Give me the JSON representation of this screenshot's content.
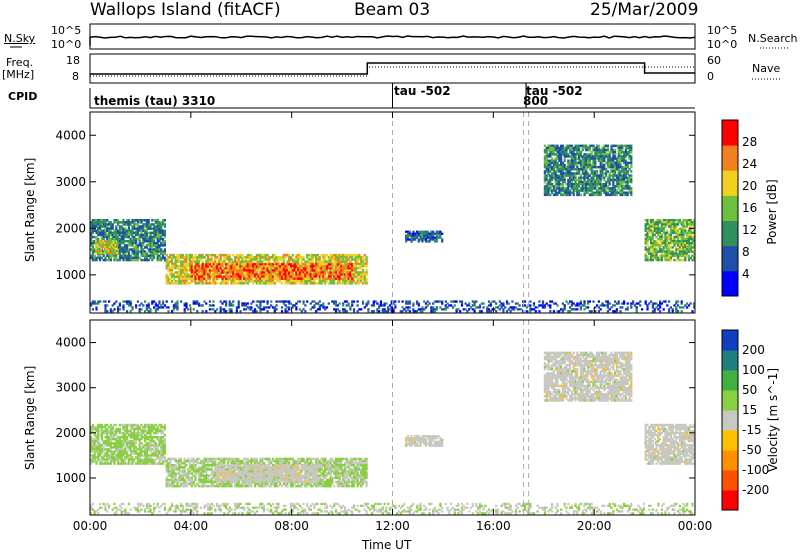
{
  "header": {
    "station": "Wallops Island (fitACF)",
    "beam": "Beam 03",
    "date": "25/Mar/2009"
  },
  "status_panels": {
    "nsky_label": "N.Sky",
    "nsearch_label": "N.Search",
    "noise_ticks_left": [
      "10^5",
      "10^0"
    ],
    "noise_ticks_right": [
      "10^5",
      "10^0"
    ],
    "freq_label": "Freq.",
    "freq_unit": "[MHz]",
    "freq_ticks": [
      "18",
      "8"
    ],
    "nave_label": "Nave",
    "nave_ticks": [
      "60",
      "0"
    ],
    "cpid_label": "CPID",
    "modes": [
      {
        "name": "themis (tau) 3310",
        "start_hour": 0
      },
      {
        "name": "tau -502",
        "start_hour": 12
      },
      {
        "name": "tau -502",
        "start_hour": 17.3
      },
      {
        "name": "800",
        "start_hour": 17.3
      }
    ]
  },
  "chart_data": [
    {
      "type": "heatmap",
      "name": "power",
      "xlabel": "Time UT",
      "ylabel": "Slant Range [km]",
      "x_ticks": [
        "00:00",
        "04:00",
        "08:00",
        "12:00",
        "16:00",
        "20:00",
        "00:00"
      ],
      "xlim_hours": [
        0,
        24
      ],
      "y_ticks": [
        1000,
        2000,
        3000,
        4000
      ],
      "ylim_km": [
        180,
        4500
      ],
      "colorbar_label": "Power [dB]",
      "colorbar_ticks": [
        "28",
        "24",
        "20",
        "16",
        "12",
        "8",
        "4"
      ],
      "colorbar_range": [
        0,
        30
      ],
      "colors": [
        "#0000ff",
        "#1f4fa8",
        "#2f8f5f",
        "#6fbf3f",
        "#f0d020",
        "#f08020",
        "#ff0000"
      ],
      "vertical_markers_hours": [
        12,
        17.2,
        17.4
      ],
      "echo_regions": [
        {
          "hours": [
            0,
            3
          ],
          "range_km": [
            1300,
            2200
          ],
          "level": 10
        },
        {
          "hours": [
            0.2,
            1.1
          ],
          "range_km": [
            1450,
            1750
          ],
          "level": 18
        },
        {
          "hours": [
            3,
            11
          ],
          "range_km": [
            800,
            1450
          ],
          "level": 18
        },
        {
          "hours": [
            4,
            10.5
          ],
          "range_km": [
            900,
            1250
          ],
          "level": 24
        },
        {
          "hours": [
            12.5,
            14
          ],
          "range_km": [
            1700,
            1950
          ],
          "level": 8
        },
        {
          "hours": [
            18,
            21.5
          ],
          "range_km": [
            2700,
            3800
          ],
          "level": 10
        },
        {
          "hours": [
            22,
            24
          ],
          "range_km": [
            1300,
            2200
          ],
          "level": 14
        },
        {
          "hours": [
            0,
            24
          ],
          "range_km": [
            200,
            450
          ],
          "level": 6
        }
      ]
    },
    {
      "type": "heatmap",
      "name": "velocity",
      "xlabel": "Time UT",
      "ylabel": "Slant Range [km]",
      "x_ticks": [
        "00:00",
        "04:00",
        "08:00",
        "12:00",
        "16:00",
        "20:00",
        "00:00"
      ],
      "xlim_hours": [
        0,
        24
      ],
      "y_ticks": [
        1000,
        2000,
        3000,
        4000
      ],
      "ylim_km": [
        180,
        4500
      ],
      "colorbar_label": "Velocity [m s^-1]",
      "colorbar_ticks": [
        "200",
        "100",
        "50",
        "15",
        "-15",
        "-50",
        "-100",
        "-200"
      ],
      "colorbar_range": [
        -250,
        250
      ],
      "colors": [
        "#ff0000",
        "#ff5000",
        "#ff9000",
        "#ffc000",
        "#c8c8c0",
        "#88d040",
        "#40b040",
        "#208080",
        "#1040c0"
      ],
      "vertical_markers_hours": [
        12,
        17.2,
        17.4
      ],
      "echo_regions": [
        {
          "hours": [
            0,
            3
          ],
          "range_km": [
            1300,
            2200
          ],
          "value": 40
        },
        {
          "hours": [
            3,
            11
          ],
          "range_km": [
            800,
            1450
          ],
          "value": 30
        },
        {
          "hours": [
            5,
            9
          ],
          "range_km": [
            900,
            1300
          ],
          "value": 0
        },
        {
          "hours": [
            12.5,
            14
          ],
          "range_km": [
            1700,
            1950
          ],
          "value": 0
        },
        {
          "hours": [
            18,
            21.5
          ],
          "range_km": [
            2700,
            3800
          ],
          "value": 0
        },
        {
          "hours": [
            22,
            24
          ],
          "range_km": [
            1300,
            2200
          ],
          "value": 0
        },
        {
          "hours": [
            0,
            24
          ],
          "range_km": [
            200,
            450
          ],
          "value": 20
        }
      ]
    }
  ]
}
